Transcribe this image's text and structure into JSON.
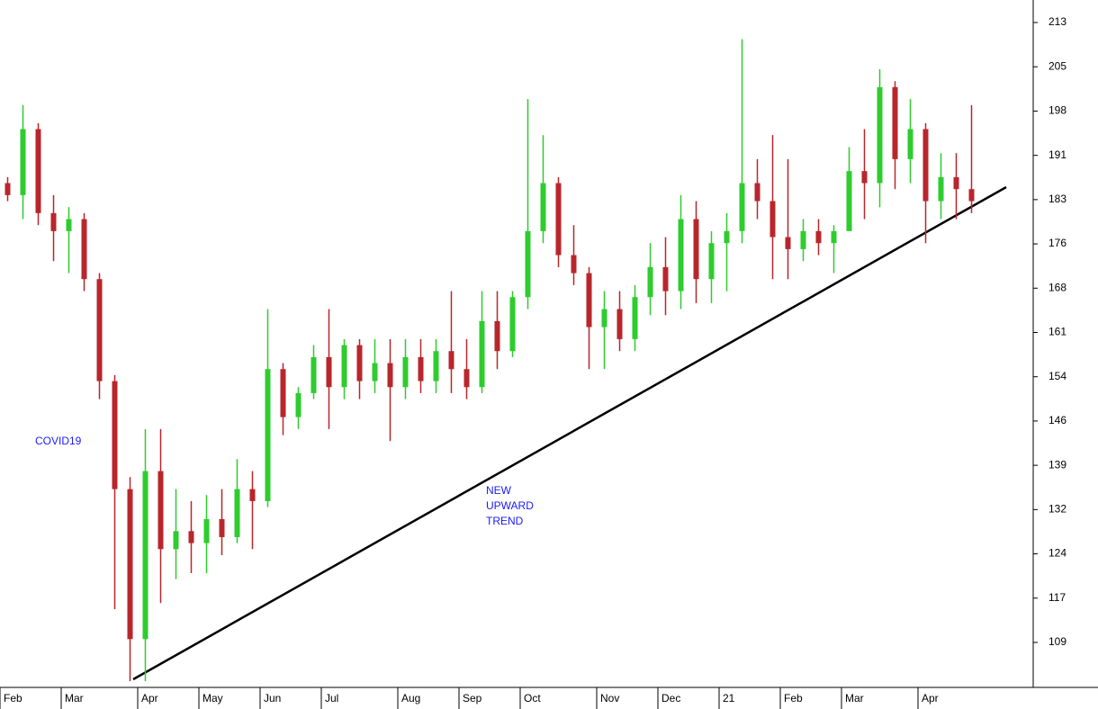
{
  "chart_data": {
    "type": "candlestick",
    "categories": [
      "Feb",
      null,
      null,
      null,
      "Mar",
      null,
      null,
      null,
      null,
      "Apr",
      null,
      null,
      null,
      "May",
      null,
      null,
      null,
      "Jun",
      null,
      null,
      null,
      "Jul",
      null,
      null,
      null,
      null,
      "Aug",
      null,
      null,
      null,
      "Sep",
      null,
      null,
      null,
      "Oct",
      null,
      null,
      null,
      null,
      "Nov",
      null,
      null,
      null,
      "Dec",
      null,
      null,
      null,
      "21",
      null,
      null,
      null,
      "Feb",
      null,
      null,
      null,
      "Mar",
      null,
      null,
      null,
      null,
      "Apr",
      null,
      null,
      null
    ],
    "open": [
      186,
      184,
      195,
      181,
      178,
      180,
      170,
      153,
      135,
      110,
      138,
      125,
      128,
      126,
      130,
      127,
      135,
      133,
      155,
      147,
      151,
      157,
      152,
      159,
      153,
      156,
      152,
      157,
      153,
      158,
      155,
      152,
      163,
      158,
      167,
      178,
      186,
      174,
      171,
      162,
      165,
      160,
      167,
      172,
      168,
      180,
      170,
      176,
      178,
      186,
      183,
      177,
      175,
      178,
      176,
      178,
      188,
      186,
      202,
      190,
      195,
      183,
      187,
      185
    ],
    "high": [
      187,
      199,
      196,
      184,
      182,
      181,
      171,
      154,
      137,
      145,
      145,
      135,
      133,
      134,
      135,
      140,
      138,
      165,
      156,
      152,
      159,
      165,
      160,
      160,
      160,
      160,
      160,
      160,
      160,
      168,
      160,
      168,
      168,
      168,
      200,
      194,
      187,
      179,
      172,
      168,
      168,
      169,
      176,
      177,
      184,
      183,
      178,
      181,
      210,
      190,
      194,
      190,
      180,
      180,
      179,
      192,
      195,
      205,
      203,
      200,
      196,
      191,
      191,
      199
    ],
    "low": [
      183,
      180,
      179,
      173,
      171,
      168,
      150,
      115,
      103,
      103,
      116,
      120,
      121,
      121,
      124,
      126,
      125,
      132,
      144,
      145,
      150,
      145,
      150,
      150,
      151,
      143,
      150,
      151,
      151,
      151,
      150,
      151,
      155,
      157,
      165,
      176,
      172,
      169,
      155,
      155,
      158,
      158,
      164,
      164,
      165,
      166,
      166,
      168,
      176,
      180,
      170,
      170,
      173,
      174,
      171,
      178,
      180,
      182,
      185,
      186,
      176,
      180,
      180,
      181
    ],
    "close": [
      184,
      195,
      181,
      178,
      180,
      170,
      153,
      135,
      110,
      138,
      125,
      128,
      126,
      130,
      127,
      135,
      133,
      155,
      147,
      151,
      157,
      152,
      159,
      153,
      156,
      152,
      157,
      153,
      158,
      155,
      152,
      163,
      158,
      167,
      178,
      186,
      174,
      171,
      162,
      165,
      160,
      167,
      172,
      168,
      180,
      170,
      176,
      178,
      186,
      183,
      177,
      175,
      178,
      176,
      178,
      188,
      186,
      202,
      190,
      195,
      183,
      187,
      185,
      183
    ],
    "up_color": "#2ecc2e",
    "down_color": "#b8262b",
    "ylim": [
      101.95,
      216.52
    ],
    "yticks": [
      {
        "value": 109.45,
        "label": "109"
      },
      {
        "value": 116.83,
        "label": "117"
      },
      {
        "value": 124.21,
        "label": "124"
      },
      {
        "value": 131.59,
        "label": "132"
      },
      {
        "value": 138.97,
        "label": "139"
      },
      {
        "value": 146.35,
        "label": "146"
      },
      {
        "value": 153.73,
        "label": "154"
      },
      {
        "value": 161.11,
        "label": "161"
      },
      {
        "value": 168.49,
        "label": "168"
      },
      {
        "value": 175.87,
        "label": "176"
      },
      {
        "value": 183.25,
        "label": "183"
      },
      {
        "value": 190.63,
        "label": "191"
      },
      {
        "value": 198.01,
        "label": "198"
      },
      {
        "value": 205.39,
        "label": "205"
      },
      {
        "value": 212.77,
        "label": "213"
      }
    ],
    "annotations": [
      {
        "lines": [
          "COVID19"
        ]
      },
      {
        "lines": [
          "NEW",
          "UPWARD",
          "TREND"
        ]
      }
    ]
  }
}
